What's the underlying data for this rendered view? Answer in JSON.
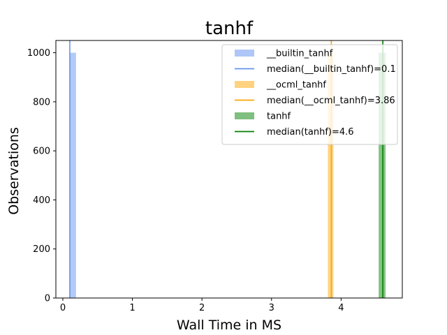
{
  "chart_data": {
    "type": "bar",
    "title": "tanhf",
    "xlabel": "Wall Time in MS",
    "ylabel": "Observations",
    "xlim": [
      -0.1,
      4.88
    ],
    "ylim": [
      0,
      1050
    ],
    "xticks": [
      0,
      1,
      2,
      3,
      4
    ],
    "yticks": [
      0,
      200,
      400,
      600,
      800,
      1000
    ],
    "grid": false,
    "legend_position": "top-right",
    "series": [
      {
        "name": "__builtin_tanhf",
        "kind": "histogram",
        "bins": [
          {
            "x0": 0.1,
            "x1": 0.19,
            "count": 1000
          }
        ],
        "color": "#aec7f8"
      },
      {
        "name": "median(__builtin_tanhf)=0.1",
        "kind": "vline",
        "x": 0.1,
        "color": "#6495ed"
      },
      {
        "name": "__ocml_tanhf",
        "kind": "histogram",
        "bins": [
          {
            "x0": 3.81,
            "x1": 3.89,
            "count": 1000
          }
        ],
        "color": "#ffd27f"
      },
      {
        "name": "median(__ocml_tanhf)=3.86",
        "kind": "vline",
        "x": 3.86,
        "color": "#ffa500"
      },
      {
        "name": "tanhf",
        "kind": "histogram",
        "bins": [
          {
            "x0": 4.54,
            "x1": 4.64,
            "count": 1000
          }
        ],
        "color": "#7fbf7f"
      },
      {
        "name": "median(tanhf)=4.6",
        "kind": "vline",
        "x": 4.6,
        "color": "#008000"
      }
    ]
  }
}
